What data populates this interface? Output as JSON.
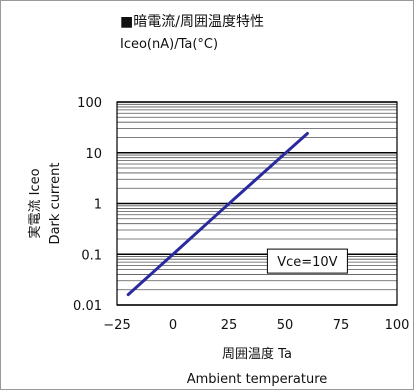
{
  "header": {
    "title": "■暗電流/周囲温度特性",
    "subtitle": "Iceo(nA)/Ta(°C)"
  },
  "chart_data": {
    "type": "line",
    "title": "■暗電流/周囲温度特性",
    "subtitle": "Iceo(nA)/Ta(°C)",
    "xlabel": "周囲温度 Ta",
    "xlabel_en": "Ambient temperature",
    "ylabel": "実電流 Iceo",
    "ylabel_en": "Dark current",
    "xlim": [
      -25,
      100
    ],
    "ylim": [
      0.01,
      100
    ],
    "yscale": "log",
    "x_ticks": [
      -25,
      0,
      25,
      50,
      75,
      100
    ],
    "x_tick_labels": [
      "−25",
      "0",
      "25",
      "50",
      "75",
      "100"
    ],
    "y_ticks": [
      0.01,
      0.1,
      1,
      10,
      100
    ],
    "y_tick_labels": [
      "0.01",
      "0.1",
      "1",
      "10",
      "100"
    ],
    "grid": true,
    "annotation": "Vce=10V",
    "series": [
      {
        "color": "#2a2aa0",
        "x": [
          -20,
          0,
          20,
          40,
          60
        ],
        "y": [
          0.016,
          0.1,
          0.63,
          3.9,
          24
        ]
      }
    ]
  }
}
